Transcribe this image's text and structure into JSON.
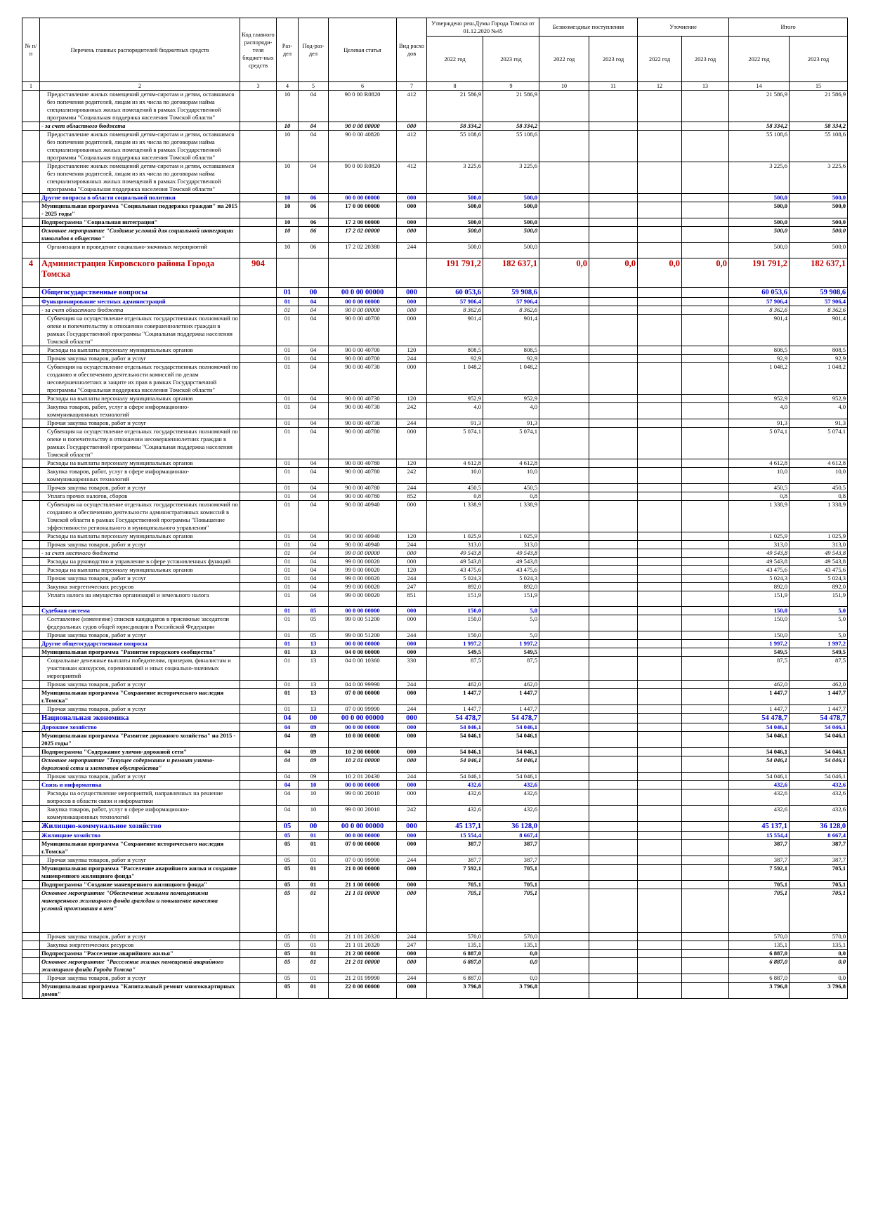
{
  "header": {
    "n": "№ п/п",
    "name": "Перечень главных распорядителей бюджетных средств",
    "code": "Код главного распоряди-теля бюджет-ных средств",
    "rz": "Раз-дел",
    "prz": "Под-раз-дел",
    "cs": "Целевая статья",
    "vr": "Вид расхо дов",
    "group_a": "Утверждено реш.Думы Города Томска от 01.12.2020 №45",
    "group_b": "Безвозмездные поступления",
    "group_c": "Уточнение",
    "group_t": "Итого",
    "years": [
      "2022 год",
      "2023 год",
      "2022 год",
      "2023 год",
      "2022 год",
      "2023 год",
      "2022 год",
      "2023 год"
    ],
    "numbers": [
      "1",
      "2",
      "3",
      "4",
      "5",
      "6",
      "7",
      "8",
      "9",
      "10",
      "11",
      "12",
      "13",
      "14",
      "15"
    ]
  },
  "rows": [
    {
      "name": "Предоставление жилых помещений детям-сиротам и детям, оставшимся без попечения родителей, лицам из их числа по договорам найма специализированных жилых помещений в рамках Государственной программы \"Социальная поддержка населения Томской области\"",
      "rz": "10",
      "prz": "04",
      "cs": "90 0 00 R0820",
      "vr": "412",
      "a22": "21 586,9",
      "a23": "21 586,9",
      "t22": "21 586,9",
      "t23": "21 586,9"
    },
    {
      "name": "- за счет областного бюджета",
      "rz": "10",
      "prz": "04",
      "cs": "90 0 00 00000",
      "vr": "000",
      "a22": "58 334,2",
      "a23": "58 334,2",
      "t22": "58 334,2",
      "t23": "58 334,2"
    },
    {
      "name": "Предоставление жилых помещений детям-сиротам и детям, оставшимся без попечения родителей, лицам из их числа по договорам найма специализированных жилых помещений в рамках Государственной программы \"Социальная поддержка населения Томской области\"",
      "rz": "10",
      "prz": "04",
      "cs": "90 0 00 40820",
      "vr": "412",
      "a22": "55 108,6",
      "a23": "55 108,6",
      "t22": "55 108,6",
      "t23": "55 108,6"
    },
    {
      "name": "Предоставление жилых помещений детям-сиротам и детям, оставшимся без попечения родителей, лицам из их числа по договорам найма специализированных жилых помещений в рамках Государственной программы \"Социальная поддержка населения Томской области\"",
      "rz": "10",
      "prz": "04",
      "cs": "90 0 00 R0820",
      "vr": "412",
      "a22": "3 225,6",
      "a23": "3 225,6",
      "t22": "3 225,6",
      "t23": "3 225,6"
    },
    {
      "name": "Другие вопросы в области социальной политики",
      "rz": "10",
      "prz": "06",
      "cs": "00 0 00 00000",
      "vr": "000",
      "a22": "500,0",
      "a23": "500,0",
      "t22": "500,0",
      "t23": "500,0"
    },
    {
      "name": "Муниципальная программа \"Социальная поддержка граждан\" на 2015 - 2025 годы\"",
      "rz": "10",
      "prz": "06",
      "cs": "17 0 00 00000",
      "vr": "000",
      "a22": "500,0",
      "a23": "500,0",
      "t22": "500,0",
      "t23": "500,0"
    },
    {
      "name": "Подпрограмма \"Социальная интеграция\"",
      "rz": "10",
      "prz": "06",
      "cs": "17 2 00 00000",
      "vr": "000",
      "a22": "500,0",
      "a23": "500,0",
      "t22": "500,0",
      "t23": "500,0"
    },
    {
      "name": "Основное мероприятие \"Создание условий для социальной интеграции инвалидов в общество\"",
      "rz": "10",
      "prz": "06",
      "cs": "17 2 02 00000",
      "vr": "000",
      "a22": "500,0",
      "a23": "500,0",
      "t22": "500,0",
      "t23": "500,0"
    },
    {
      "name": "Организация и проведение социально-значимых мероприятий",
      "rz": "10",
      "prz": "06",
      "cs": "17 2 02 20380",
      "vr": "244",
      "a22": "500,0",
      "a23": "500,0",
      "t22": "500,0",
      "t23": "500,0"
    },
    {
      "n": "4",
      "name": "Администрация Кировского района Города Томска",
      "code": "904",
      "a22": "191 791,2",
      "a23": "182 637,1",
      "b22": "0,0",
      "b23": "0,0",
      "c22": "0,0",
      "c23": "0,0",
      "t22": "191 791,2",
      "t23": "182 637,1"
    },
    {
      "name": "Общегосударственные вопросы",
      "rz": "01",
      "prz": "00",
      "cs": "00 0 00 00000",
      "vr": "000",
      "a22": "60 053,6",
      "a23": "59 908,6",
      "t22": "60 053,6",
      "t23": "59 908,6"
    },
    {
      "name": "Функционирование местных администраций",
      "rz": "01",
      "prz": "04",
      "cs": "00 0 00 00000",
      "vr": "000",
      "a22": "57 906,4",
      "a23": "57 906,4",
      "t22": "57 906,4",
      "t23": "57 906,4"
    },
    {
      "name": "- за счет областного бюджета",
      "rz": "01",
      "prz": "04",
      "cs": "90 0 00 00000",
      "vr": "000",
      "a22": "8 362,6",
      "a23": "8 362,6",
      "t22": "8 362,6",
      "t23": "8 362,6"
    },
    {
      "name": "Субвенция на осуществление отдельных государственных полномочий по опеке и попечительству в отношении совершеннолетних граждан в рамках Государственной программы \"Социальная поддержка населения Томской области\"",
      "rz": "01",
      "prz": "04",
      "cs": "90 0 00 40700",
      "vr": "000",
      "a22": "901,4",
      "a23": "901,4",
      "t22": "901,4",
      "t23": "901,4"
    },
    {
      "name": "Расходы на выплаты персоналу муниципальных органов",
      "rz": "01",
      "prz": "04",
      "cs": "90 0 00 40700",
      "vr": "120",
      "a22": "808,5",
      "a23": "808,5",
      "t22": "808,5",
      "t23": "808,5"
    },
    {
      "name": "Прочая закупка товаров, работ и услуг",
      "rz": "01",
      "prz": "04",
      "cs": "90 0 00 40700",
      "vr": "244",
      "a22": "92,9",
      "a23": "92,9",
      "t22": "92,9",
      "t23": "92,9"
    },
    {
      "name": "Субвенция на осуществление отдельных государственных полномочий по созданию и обеспечению деятельности комиссий по делам несовершеннолетних и защите их прав в рамках Государственной программы \"Социальная поддержка населения Томской области\"",
      "rz": "01",
      "prz": "04",
      "cs": "90 0 00 40730",
      "vr": "000",
      "a22": "1 048,2",
      "a23": "1 048,2",
      "t22": "1 048,2",
      "t23": "1 048,2"
    },
    {
      "name": "Расходы на выплаты персоналу муниципальных органов",
      "rz": "01",
      "prz": "04",
      "cs": "90 0 00 40730",
      "vr": "120",
      "a22": "952,9",
      "a23": "952,9",
      "t22": "952,9",
      "t23": "952,9"
    },
    {
      "name": "Закупка товаров, работ, услуг в сфере информационно-коммуникационных технологий",
      "rz": "01",
      "prz": "04",
      "cs": "90 0 00 40730",
      "vr": "242",
      "a22": "4,0",
      "a23": "4,0",
      "t22": "4,0",
      "t23": "4,0"
    },
    {
      "name": "Прочая закупка товаров, работ и услуг",
      "rz": "01",
      "prz": "04",
      "cs": "90 0 00 40730",
      "vr": "244",
      "a22": "91,3",
      "a23": "91,3",
      "t22": "91,3",
      "t23": "91,3"
    },
    {
      "name": "Субвенция на осуществление отдельных государственных полномочий по опеке и попечительству в отношении несовершеннолетних граждан в рамках Государственной программы \"Социальная поддержка населения Томской области\"",
      "rz": "01",
      "prz": "04",
      "cs": "90 0 00 40780",
      "vr": "000",
      "a22": "5 074,1",
      "a23": "5 074,1",
      "t22": "5 074,1",
      "t23": "5 074,1"
    },
    {
      "name": "Расходы на выплаты персоналу муниципальных органов",
      "rz": "01",
      "prz": "04",
      "cs": "90 0 00 40780",
      "vr": "120",
      "a22": "4 612,8",
      "a23": "4 612,8",
      "t22": "4 612,8",
      "t23": "4 612,8"
    },
    {
      "name": "Закупка товаров, работ, услуг в сфере информационно-коммуникационных технологий",
      "rz": "01",
      "prz": "04",
      "cs": "90 0 00 40780",
      "vr": "242",
      "a22": "10,0",
      "a23": "10,0",
      "t22": "10,0",
      "t23": "10,0"
    },
    {
      "name": "Прочая закупка товаров, работ и услуг",
      "rz": "01",
      "prz": "04",
      "cs": "90 0 00 40780",
      "vr": "244",
      "a22": "450,5",
      "a23": "450,5",
      "t22": "450,5",
      "t23": "450,5"
    },
    {
      "name": "Уплата прочих налогов, сборов",
      "rz": "01",
      "prz": "04",
      "cs": "90 0 00 40780",
      "vr": "852",
      "a22": "0,8",
      "a23": "0,8",
      "t22": "0,8",
      "t23": "0,8"
    },
    {
      "name": "Субвенция на осуществление отдельных государственных полномочий по созданию и обеспечению деятельности административных комиссий в Томской области в рамках Государственной программы \"Повышение эффективности регионального и муниципального управления\"",
      "rz": "01",
      "prz": "04",
      "cs": "90 0 00 40940",
      "vr": "000",
      "a22": "1 338,9",
      "a23": "1 338,9",
      "t22": "1 338,9",
      "t23": "1 338,9"
    },
    {
      "name": "Расходы на выплаты персоналу муниципальных органов",
      "rz": "01",
      "prz": "04",
      "cs": "90 0 00 40940",
      "vr": "120",
      "a22": "1 025,9",
      "a23": "1 025,9",
      "t22": "1 025,9",
      "t23": "1 025,9"
    },
    {
      "name": "Прочая закупка товаров, работ и услуг",
      "rz": "01",
      "prz": "04",
      "cs": "90 0 00 40940",
      "vr": "244",
      "a22": "313,0",
      "a23": "313,0",
      "t22": "313,0",
      "t23": "313,0"
    },
    {
      "name": "- за счет местного бюджета",
      "rz": "01",
      "prz": "04",
      "cs": "99 0 00 00000",
      "vr": "000",
      "a22": "49 543,8",
      "a23": "49 543,8",
      "t22": "49 543,8",
      "t23": "49 543,8"
    },
    {
      "name": "Расходы на руководство и управление в сфере установленных функций",
      "rz": "01",
      "prz": "04",
      "cs": "99 0 00 00020",
      "vr": "000",
      "a22": "49 543,8",
      "a23": "49 543,8",
      "t22": "49 543,8",
      "t23": "49 543,8"
    },
    {
      "name": "Расходы на выплаты персоналу муниципальных органов",
      "rz": "01",
      "prz": "04",
      "cs": "99 0 00 00020",
      "vr": "120",
      "a22": "43 475,6",
      "a23": "43 475,6",
      "t22": "43 475,6",
      "t23": "43 475,6"
    },
    {
      "name": "Прочая закупка товаров, работ и услуг",
      "rz": "01",
      "prz": "04",
      "cs": "99 0 00 00020",
      "vr": "244",
      "a22": "5 024,3",
      "a23": "5 024,3",
      "t22": "5 024,3",
      "t23": "5 024,3"
    },
    {
      "name": "Закупка энергетических ресурсов",
      "rz": "01",
      "prz": "04",
      "cs": "99 0 00 00020",
      "vr": "247",
      "a22": "892,0",
      "a23": "892,0",
      "t22": "892,0",
      "t23": "892,0"
    },
    {
      "name": "Уплата налога на имущество организаций и земельного налога",
      "rz": "01",
      "prz": "04",
      "cs": "99 0 00 00020",
      "vr": "851",
      "a22": "151,9",
      "a23": "151,9",
      "t22": "151,9",
      "t23": "151,9"
    },
    {
      "name": "Судебная система",
      "rz": "01",
      "prz": "05",
      "cs": "00 0 00 00000",
      "vr": "000",
      "a22": "150,0",
      "a23": "5,0",
      "t22": "150,0",
      "t23": "5,0"
    },
    {
      "name": "Составление (изменение) списков кандидатов в присяжные заседатели федеральных судов общей юрисдикции в Российской Федерации",
      "rz": "01",
      "prz": "05",
      "cs": "99 0 00 51200",
      "vr": "000",
      "a22": "150,0",
      "a23": "5,0",
      "t22": "150,0",
      "t23": "5,0"
    },
    {
      "name": "Прочая закупка товаров, работ и услуг",
      "rz": "01",
      "prz": "05",
      "cs": "99 0 00 51200",
      "vr": "244",
      "a22": "150,0",
      "a23": "5,0",
      "t22": "150,0",
      "t23": "5,0"
    },
    {
      "name": "Другие общегосударственные вопросы",
      "rz": "01",
      "prz": "13",
      "cs": "00 0 00 00000",
      "vr": "000",
      "a22": "1 997,2",
      "a23": "1 997,2",
      "t22": "1 997,2",
      "t23": "1 997,2"
    },
    {
      "name": "Муниципальная программа \"Развитие городского сообщества\"",
      "rz": "01",
      "prz": "13",
      "cs": "04 0 00 00000",
      "vr": "000",
      "a22": "549,5",
      "a23": "549,5",
      "t22": "549,5",
      "t23": "549,5"
    },
    {
      "name": "Социальные денежные выплаты победителям, призерам, финалистам и участникам конкурсов, соревнований и иных социально-значимых мероприятий",
      "rz": "01",
      "prz": "13",
      "cs": "04 0 00 10360",
      "vr": "330",
      "a22": "87,5",
      "a23": "87,5",
      "t22": "87,5",
      "t23": "87,5"
    },
    {
      "name": "Прочая закупка товаров, работ и услуг",
      "rz": "01",
      "prz": "13",
      "cs": "04 0 00 99990",
      "vr": "244",
      "a22": "462,0",
      "a23": "462,0",
      "t22": "462,0",
      "t23": "462,0"
    },
    {
      "name": "Муниципальная программа \"Сохранение исторического наследия г.Томска\"",
      "rz": "01",
      "prz": "13",
      "cs": "07 0 00 00000",
      "vr": "000",
      "a22": "1 447,7",
      "a23": "1 447,7",
      "t22": "1 447,7",
      "t23": "1 447,7"
    },
    {
      "name": "Прочая закупка товаров, работ и услуг",
      "rz": "01",
      "prz": "13",
      "cs": "07 0 00 99990",
      "vr": "244",
      "a22": "1 447,7",
      "a23": "1 447,7",
      "t22": "1 447,7",
      "t23": "1 447,7"
    },
    {
      "name": "Национальная экономика",
      "rz": "04",
      "prz": "00",
      "cs": "00 0 00 00000",
      "vr": "000",
      "a22": "54 478,7",
      "a23": "54 478,7",
      "t22": "54 478,7",
      "t23": "54 478,7"
    },
    {
      "name": "Дорожное хозяйство",
      "rz": "04",
      "prz": "09",
      "cs": "00 0 00 00000",
      "vr": "000",
      "a22": "54 046,1",
      "a23": "54 046,1",
      "t22": "54 046,1",
      "t23": "54 046,1"
    },
    {
      "name": "Муниципальная программа \"Развитие дорожного хозяйства\" на 2015 - 2025 годы\"",
      "rz": "04",
      "prz": "09",
      "cs": "10 0 00 00000",
      "vr": "000",
      "a22": "54 046,1",
      "a23": "54 046,1",
      "t22": "54 046,1",
      "t23": "54 046,1"
    },
    {
      "name": "Подпрограмма \"Содержание улично-дорожной сети\"",
      "rz": "04",
      "prz": "09",
      "cs": "10 2 00 00000",
      "vr": "000",
      "a22": "54 046,1",
      "a23": "54 046,1",
      "t22": "54 046,1",
      "t23": "54 046,1"
    },
    {
      "name": "Основное мероприятие \"Текущее содержание и ремонт улично-дорожной сети и элементов обустройства\"",
      "rz": "04",
      "prz": "09",
      "cs": "10 2 01 00000",
      "vr": "000",
      "a22": "54 046,1",
      "a23": "54 046,1",
      "t22": "54 046,1",
      "t23": "54 046,1"
    },
    {
      "name": "Прочая закупка товаров, работ и услуг",
      "rz": "04",
      "prz": "09",
      "cs": "10 2 01 20430",
      "vr": "244",
      "a22": "54 046,1",
      "a23": "54 046,1",
      "t22": "54 046,1",
      "t23": "54 046,1"
    },
    {
      "name": "Связь и информатика",
      "rz": "04",
      "prz": "10",
      "cs": "00 0 00 00000",
      "vr": "000",
      "a22": "432,6",
      "a23": "432,6",
      "t22": "432,6",
      "t23": "432,6"
    },
    {
      "name": "Расходы на осуществление мероприятий, направленных на решение вопросов в области связи и информатики",
      "rz": "04",
      "prz": "10",
      "cs": "99 0 00 20010",
      "vr": "000",
      "a22": "432,6",
      "a23": "432,6",
      "t22": "432,6",
      "t23": "432,6"
    },
    {
      "name": "Закупка товаров, работ, услуг в сфере информационно-коммуникационных технологий",
      "rz": "04",
      "prz": "10",
      "cs": "99 0 00 20010",
      "vr": "242",
      "a22": "432,6",
      "a23": "432,6",
      "t22": "432,6",
      "t23": "432,6"
    },
    {
      "name": "Жилищно-коммунальное хозяйство",
      "rz": "05",
      "prz": "00",
      "cs": "00 0 00 00000",
      "vr": "000",
      "a22": "45 137,1",
      "a23": "36 128,0",
      "t22": "45 137,1",
      "t23": "36 128,0"
    },
    {
      "name": "Жилищное хозяйство",
      "rz": "05",
      "prz": "01",
      "cs": "00 0 00 00000",
      "vr": "000",
      "a22": "15 554,4",
      "a23": "8 667,4",
      "t22": "15 554,4",
      "t23": "8 667,4"
    },
    {
      "name": "Муниципальная программа \"Сохранение исторического наследия г.Томска\"",
      "rz": "05",
      "prz": "01",
      "cs": "07 0 00 00000",
      "vr": "000",
      "a22": "387,7",
      "a23": "387,7",
      "t22": "387,7",
      "t23": "387,7"
    },
    {
      "name": "Прочая закупка товаров, работ и услуг",
      "rz": "05",
      "prz": "01",
      "cs": "07 0 00 99990",
      "vr": "244",
      "a22": "387,7",
      "a23": "387,7",
      "t22": "387,7",
      "t23": "387,7"
    },
    {
      "name": "Муниципальная программа \"Расселение аварийного жилья и создание маневренного жилищного фонда\"",
      "rz": "05",
      "prz": "01",
      "cs": "21 0 00 00000",
      "vr": "000",
      "a22": "7 592,1",
      "a23": "705,1",
      "t22": "7 592,1",
      "t23": "705,1"
    },
    {
      "name": "Подпрограмма \"Создание маневренного жилищного фонда\"",
      "rz": "05",
      "prz": "01",
      "cs": "21 1 00 00000",
      "vr": "000",
      "a22": "705,1",
      "a23": "705,1",
      "t22": "705,1",
      "t23": "705,1"
    },
    {
      "name": "Основное мероприятие \"Обеспечение жилыми помещениями маневренного жилищного фонда граждан и повышение качества условий проживания в нем\"",
      "rz": "05",
      "prz": "01",
      "cs": "21 1 01 00000",
      "vr": "000",
      "a22": "705,1",
      "a23": "705,1",
      "t22": "705,1",
      "t23": "705,1"
    },
    {
      "name": "Прочая закупка товаров, работ и услуг",
      "rz": "05",
      "prz": "01",
      "cs": "21 1 01 20320",
      "vr": "244",
      "a22": "570,0",
      "a23": "570,0",
      "t22": "570,0",
      "t23": "570,0"
    },
    {
      "name": "Закупка энергетических ресурсов",
      "rz": "05",
      "prz": "01",
      "cs": "21 1 01 20320",
      "vr": "247",
      "a22": "135,1",
      "a23": "135,1",
      "t22": "135,1",
      "t23": "135,1"
    },
    {
      "name": "Подпрограмма \"Расселение аварийного жилья\"",
      "rz": "05",
      "prz": "01",
      "cs": "21 2 00 00000",
      "vr": "000",
      "a22": "6 887,0",
      "a23": "0,0",
      "t22": "6 887,0",
      "t23": "0,0"
    },
    {
      "name": "Основное мероприятие \"Расселение жилых помещений аварийного жилищного фонда Города Томска\"",
      "rz": "05",
      "prz": "01",
      "cs": "21 2 01 00000",
      "vr": "000",
      "a22": "6 887,0",
      "a23": "0,0",
      "t22": "6 887,0",
      "t23": "0,0"
    },
    {
      "name": "Прочая закупка товаров, работ и услуг",
      "rz": "05",
      "prz": "01",
      "cs": "21 2 01 99990",
      "vr": "244",
      "a22": "6 887,0",
      "a23": "0,0",
      "t22": "6 887,0",
      "t23": "0,0"
    },
    {
      "name": "Муниципальная программа \"Капитальный ремонт многоквартирных домов\"",
      "rz": "05",
      "prz": "01",
      "cs": "22 0 00 00000",
      "vr": "000",
      "a22": "3 796,8",
      "a23": "3 796,8",
      "t22": "3 796,8",
      "t23": "3 796,8"
    }
  ]
}
